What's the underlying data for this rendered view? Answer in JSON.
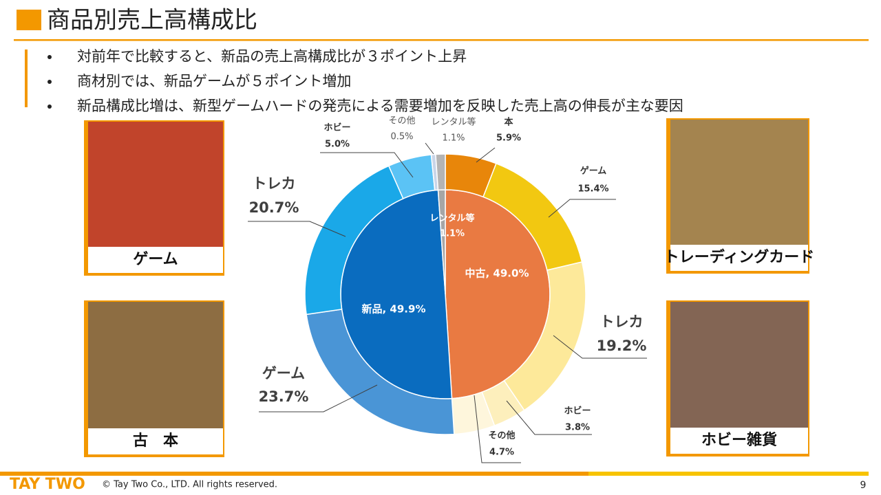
{
  "header": {
    "title": "商品別売上高構成比"
  },
  "bullets": [
    "対前年で比較すると、新品の売上高構成比が３ポイント上昇",
    "商材別では、新品ゲームが５ポイント増加",
    "新品構成比増は、新型ゲームハードの発売による需要増加を反映した売上高の伸長が主な要因"
  ],
  "photos": [
    {
      "caption": "ゲーム"
    },
    {
      "caption": "古　本"
    },
    {
      "caption": "トレーディングカード"
    },
    {
      "caption": "ホビー雑貨"
    }
  ],
  "chart_data": {
    "type": "donut",
    "rings": [
      {
        "slices": [
          {
            "value": 49.0,
            "value_label": "中古, 49.0%",
            "color": "#e97a42"
          },
          {
            "value": 49.9,
            "value_label": "新品, 49.9%",
            "color": "#0a6cbf"
          },
          {
            "name": "レンタル等",
            "value": 1.1,
            "value_label": "1.1%",
            "color": "#a6a6a6"
          }
        ]
      },
      {
        "slices": [
          {
            "name": "本",
            "value": 5.9,
            "value_label": "5.9%",
            "color": "#e8860a"
          },
          {
            "name": "ゲーム",
            "value": 15.4,
            "value_label": "15.4%",
            "color": "#f2c811"
          },
          {
            "name": "トレカ",
            "value": 19.2,
            "value_label": "19.2%",
            "color": "#fde99a"
          },
          {
            "name": "ホビー",
            "value": 3.8,
            "value_label": "3.8%",
            "color": "#fdefbc"
          },
          {
            "name": "その他",
            "value": 4.7,
            "value_label": "4.7%",
            "color": "#fef6dc"
          },
          {
            "name": "ゲーム",
            "value": 23.7,
            "value_label": "23.7%",
            "color": "#4a95d6"
          },
          {
            "name": "トレカ",
            "value": 20.7,
            "value_label": "20.7%",
            "color": "#1aa8e8"
          },
          {
            "name": "ホビー",
            "value": 5.0,
            "value_label": "5.0%",
            "color": "#5bc3f5"
          },
          {
            "name": "その他",
            "value": 0.5,
            "value_label": "0.5%",
            "color": "#c9d5e8"
          },
          {
            "name": "レンタル等",
            "value": 1.1,
            "value_label": "1.1%",
            "color": "#b4b4b4"
          }
        ]
      }
    ]
  },
  "footer": {
    "logo": "TAY TWO",
    "copyright": "© Tay Two Co., LTD. All rights reserved.",
    "page": "9"
  }
}
